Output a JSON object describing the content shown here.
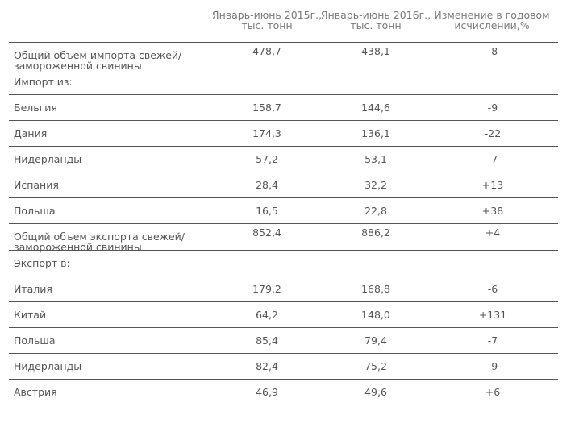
{
  "headers": {
    "col1": "Январь-июнь 2015г., тыс. тонн",
    "col2": "Январь-июнь 2016г., тыс. тонн",
    "col3": "Изменение в годовом исчислении,%"
  },
  "rows": [
    {
      "label": "Общий объем импорта свежей/ замороженной свинины",
      "v2015": "478,7",
      "v2016": "438,1",
      "change": "-8",
      "type": "double"
    },
    {
      "label": "Импорт из:",
      "v2015": "",
      "v2016": "",
      "change": "",
      "type": "single"
    },
    {
      "label": "Бельгия",
      "v2015": "158,7",
      "v2016": "144,6",
      "change": "-9",
      "type": "single"
    },
    {
      "label": "Дания",
      "v2015": "174,3",
      "v2016": "136,1",
      "change": "-22",
      "type": "single"
    },
    {
      "label": "Нидерланды",
      "v2015": "57,2",
      "v2016": "53,1",
      "change": "-7",
      "type": "single"
    },
    {
      "label": "Испания",
      "v2015": "28,4",
      "v2016": "32,2",
      "change": "+13",
      "type": "single"
    },
    {
      "label": "Польша",
      "v2015": "16,5",
      "v2016": "22,8",
      "change": "+38",
      "type": "single"
    },
    {
      "label": "Общий объем экспорта свежей/ замороженной свинины",
      "v2015": "852,4",
      "v2016": "886,2",
      "change": "+4",
      "type": "double"
    },
    {
      "label": "Экспорт в:",
      "v2015": "",
      "v2016": "",
      "change": "",
      "type": "single"
    },
    {
      "label": "Италия",
      "v2015": "179,2",
      "v2016": "168,8",
      "change": "-6",
      "type": "single"
    },
    {
      "label": "Китай",
      "v2015": "64,2",
      "v2016": "148,0",
      "change": "+131",
      "type": "single"
    },
    {
      "label": "Польша",
      "v2015": "85,4",
      "v2016": "79,4",
      "change": "-7",
      "type": "single"
    },
    {
      "label": "Нидерланды",
      "v2015": "82,4",
      "v2016": "75,2",
      "change": "-9",
      "type": "single"
    },
    {
      "label": "Австрия",
      "v2015": "46,9",
      "v2016": "49,6",
      "change": "+6",
      "type": "single"
    }
  ]
}
